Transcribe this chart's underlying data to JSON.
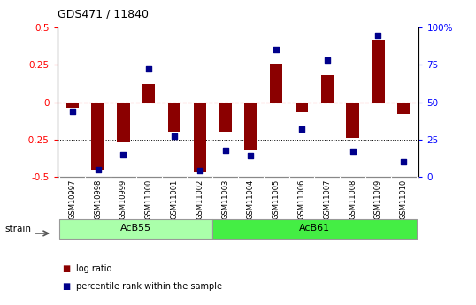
{
  "title": "GDS471 / 11840",
  "samples": [
    "GSM10997",
    "GSM10998",
    "GSM10999",
    "GSM11000",
    "GSM11001",
    "GSM11002",
    "GSM11003",
    "GSM11004",
    "GSM11005",
    "GSM11006",
    "GSM11007",
    "GSM11008",
    "GSM11009",
    "GSM11010"
  ],
  "log_ratio": [
    -0.04,
    -0.45,
    -0.27,
    0.12,
    -0.2,
    -0.47,
    -0.2,
    -0.32,
    0.26,
    -0.07,
    0.18,
    -0.24,
    0.42,
    -0.08
  ],
  "percentile": [
    44,
    5,
    15,
    72,
    27,
    4,
    18,
    14,
    85,
    32,
    78,
    17,
    95,
    10
  ],
  "groups": [
    {
      "name": "AcB55",
      "start": 0,
      "end": 5,
      "color": "#90EE90"
    },
    {
      "name": "AcB61",
      "start": 6,
      "end": 13,
      "color": "#44DD44"
    }
  ],
  "ylim_left": [
    -0.5,
    0.5
  ],
  "ylim_right": [
    0,
    100
  ],
  "yticks_left": [
    -0.5,
    -0.25,
    0,
    0.25,
    0.5
  ],
  "yticks_right": [
    0,
    25,
    50,
    75,
    100
  ],
  "bar_color": "#8B0000",
  "dot_color": "#00008B",
  "zero_line_color": "#FF4444",
  "legend_log_ratio": "log ratio",
  "legend_percentile": "percentile rank within the sample",
  "group_label": "strain",
  "bar_width": 0.5,
  "acb55_color": "#AAFFAA",
  "acb61_color": "#44EE44",
  "xlabel_bg": "#CCCCCC",
  "group_border_color": "#999999"
}
